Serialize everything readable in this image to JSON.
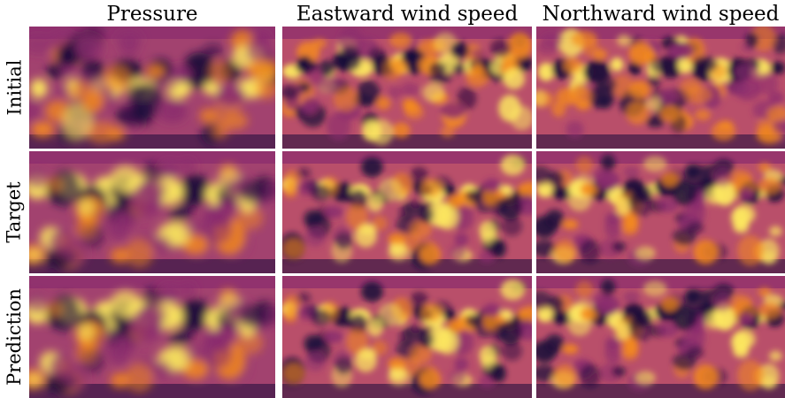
{
  "figure": {
    "columns": [
      {
        "label": "Pressure"
      },
      {
        "label": "Eastward wind speed"
      },
      {
        "label": "Northward wind speed"
      }
    ],
    "rows": [
      {
        "label": "Initial"
      },
      {
        "label": "Target"
      },
      {
        "label": "Prediction"
      }
    ],
    "colormap": "inferno",
    "colors": {
      "background_field": "#b94f6a",
      "dark": "#1a0b3a",
      "mid": "#8a2c6e",
      "bright": "#f48a1c",
      "hot": "#fde860"
    }
  }
}
